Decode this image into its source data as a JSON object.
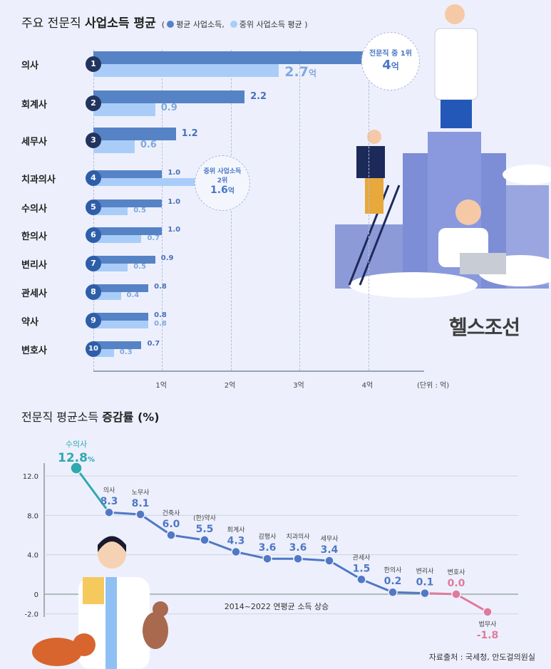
{
  "chart_data": [
    {
      "type": "bar",
      "title_plain": "주요 전문직 ",
      "title_bold": "사업소득 평균",
      "legend_open": "(",
      "legend_close": ")",
      "unit": "(단위 : 억)",
      "value_suffix": "억",
      "categories": [
        "의사",
        "회계사",
        "세무사",
        "치과의사",
        "수의사",
        "한의사",
        "변리사",
        "관세사",
        "약사",
        "변호사"
      ],
      "ranks": [
        "1",
        "2",
        "3",
        "4",
        "5",
        "6",
        "7",
        "8",
        "9",
        "10"
      ],
      "series": [
        {
          "name": "평균 사업소득,",
          "color": "#5583c6",
          "values": [
            4.0,
            2.2,
            1.2,
            1.0,
            1.0,
            1.0,
            0.9,
            0.8,
            0.8,
            0.7
          ]
        },
        {
          "name": "중위 사업소득 평균",
          "color": "#a9cdf8",
          "values": [
            2.7,
            0.9,
            0.6,
            1.6,
            0.5,
            0.7,
            0.5,
            0.4,
            0.8,
            0.3
          ]
        }
      ],
      "value_labels_avg": [
        "",
        "2.2",
        "1.2",
        "1.0",
        "1.0",
        "1.0",
        "0.9",
        "0.8",
        "0.8",
        "0.7"
      ],
      "value_labels_median": [
        "2.7",
        "0.9",
        "0.6",
        "",
        "0.5",
        "0.7",
        "0.5",
        "0.4",
        "0.8",
        "0.3"
      ],
      "xticks": [
        "1억",
        "2억",
        "3억",
        "4억"
      ],
      "xlim": [
        0,
        4.8
      ],
      "callout_1": {
        "line1": "전문직 중 1위",
        "value": "4",
        "unit": "억"
      },
      "callout_2": {
        "line1": "중위 사업소득",
        "line2": "2위",
        "value": "1.6",
        "unit": "억"
      }
    },
    {
      "type": "line",
      "title_plain": "전문직 평균소득 ",
      "title_bold": "증감률 (%)",
      "annotation": "2014~2022 연평균 소득 상승",
      "categories": [
        "수의사",
        "의사",
        "노무사",
        "건축사",
        "(한)약사",
        "회계사",
        "감평사",
        "치과의사",
        "세무사",
        "관세사",
        "한의사",
        "변리사",
        "변호사",
        "법무사"
      ],
      "values": [
        12.8,
        8.3,
        8.1,
        6.0,
        5.5,
        4.3,
        3.6,
        3.6,
        3.4,
        1.5,
        0.2,
        0.1,
        0.0,
        -1.8
      ],
      "value_labels": [
        "12.8",
        "8.3",
        "8.1",
        "6.0",
        "5.5",
        "4.3",
        "3.6",
        "3.6",
        "3.4",
        "1.5",
        "0.2",
        "0.1",
        "0.0",
        "-1.8"
      ],
      "first_suffix": "%",
      "yticks": [
        "12.0",
        "8.0",
        "4.0",
        "0",
        "-2.0"
      ],
      "ytick_values": [
        12,
        8,
        4,
        0,
        -2
      ],
      "ylim": [
        -2.5,
        14
      ],
      "grid": true,
      "colors": {
        "top": "#2fa8b0",
        "main": "#5078c4",
        "negative": "#e07a9c"
      }
    }
  ],
  "brand": "헬스조선",
  "source": "자료출처 : 국세청, 안도걸의원실"
}
